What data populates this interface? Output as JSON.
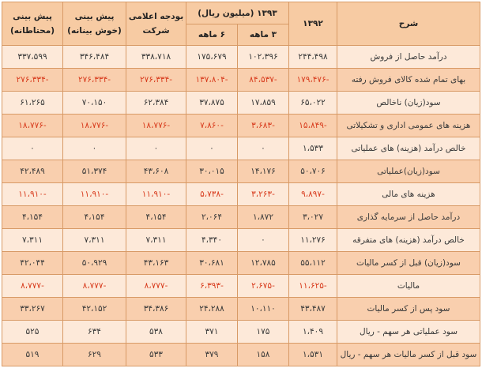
{
  "header": {
    "desc": "شرح",
    "y1392": "۱۳۹۲",
    "y1393": "۱۳۹۳ (میلیون ریال)",
    "m3": "۳ ماهه",
    "m6": "۶ ماهه",
    "budget": "بودجه اعلامی شرکت",
    "forecast_opt": "پیش بینی (خوش بینانه)",
    "forecast_cons": "پیش بینی (محتاطانه)"
  },
  "rows": [
    {
      "desc": "درآمد حاصل از فروش",
      "v1392": "۲۴۴،۴۹۸",
      "m3": "۱۰۲،۳۹۶",
      "m6": "۱۷۵،۶۷۹",
      "budget": "۳۳۸،۷۱۸",
      "opt": "۳۴۶،۴۸۴",
      "cons": "۳۳۷،۵۹۹",
      "neg": false
    },
    {
      "desc": "بهای تمام شده کالای فروش رفته",
      "v1392": "-۱۷۹،۴۷۶",
      "m3": "-۸۴،۵۳۷",
      "m6": "-۱۳۷،۸۰۴",
      "budget": "-۲۷۶،۳۳۴",
      "opt": "-۲۷۶،۳۳۴",
      "cons": "-۲۷۶،۳۳۴",
      "neg": true
    },
    {
      "desc": "سود(زیان) ناخالص",
      "v1392": "۶۵،۰۲۲",
      "m3": "۱۷،۸۵۹",
      "m6": "۳۷،۸۷۵",
      "budget": "۶۲،۳۸۴",
      "opt": "۷۰،۱۵۰",
      "cons": "۶۱،۲۶۵",
      "neg": false
    },
    {
      "desc": "هزینه های عمومی اداری و تشکیلاتی",
      "v1392": "-۱۵،۸۴۹",
      "m3": "-۳،۶۸۳",
      "m6": "-۷،۸۶۰",
      "budget": "-۱۸،۷۷۶",
      "opt": "-۱۸،۷۷۶",
      "cons": "-۱۸،۷۷۶",
      "neg": true
    },
    {
      "desc": "خالص درآمد (هزینه) های عملیاتی",
      "v1392": "۱،۵۳۳",
      "m3": "۰",
      "m6": "۰",
      "budget": "۰",
      "opt": "۰",
      "cons": "۰",
      "neg": false
    },
    {
      "desc": "سود(زیان)عملیاتی",
      "v1392": "۵۰،۷۰۶",
      "m3": "۱۴،۱۷۶",
      "m6": "۳۰،۰۱۵",
      "budget": "۴۳،۶۰۸",
      "opt": "۵۱،۳۷۴",
      "cons": "۴۲،۴۸۹",
      "neg": false
    },
    {
      "desc": "هزینه های مالی",
      "v1392": "-۹،۸۹۷",
      "m3": "-۳،۲۶۳",
      "m6": "-۵،۷۳۸",
      "budget": "-۱۱،۹۱۰",
      "opt": "-۱۱،۹۱۰",
      "cons": "-۱۱،۹۱۰",
      "neg": true
    },
    {
      "desc": "درآمد حاصل از سرمایه گذاری",
      "v1392": "۳،۰۲۷",
      "m3": "۱،۸۷۲",
      "m6": "۲،۰۶۴",
      "budget": "۴،۱۵۴",
      "opt": "۴،۱۵۴",
      "cons": "۴،۱۵۴",
      "neg": false
    },
    {
      "desc": "خالص درآمد (هزینه) های متفرقه",
      "v1392": "۱۱،۲۷۶",
      "m3": "۰",
      "m6": "۴،۳۴۰",
      "budget": "۷،۳۱۱",
      "opt": "۷،۳۱۱",
      "cons": "۷،۳۱۱",
      "neg": false
    },
    {
      "desc": "سود(زیان) قبل از کسر مالیات",
      "v1392": "۵۵،۱۱۲",
      "m3": "۱۲،۷۸۵",
      "m6": "۳۰،۶۸۱",
      "budget": "۴۳،۱۶۳",
      "opt": "۵۰،۹۲۹",
      "cons": "۴۲،۰۴۴",
      "neg": false
    },
    {
      "desc": "مالیات",
      "v1392": "-۱۱،۶۲۵",
      "m3": "-۲،۶۷۵",
      "m6": "-۶،۳۹۳",
      "budget": "-۸،۷۷۷",
      "opt": "-۸،۷۷۷",
      "cons": "-۸،۷۷۷",
      "neg": true
    },
    {
      "desc": "سود پس از کسر مالیات",
      "v1392": "۴۳،۴۸۷",
      "m3": "۱۰،۱۱۰",
      "m6": "۲۴،۲۸۸",
      "budget": "۳۴،۳۸۶",
      "opt": "۴۲،۱۵۲",
      "cons": "۳۳،۲۶۷",
      "neg": false
    },
    {
      "desc": "سود عملیاتی هر سهم - ریال",
      "v1392": "۱،۴۰۹",
      "m3": "۱۷۵",
      "m6": "۳۷۱",
      "budget": "۵۳۸",
      "opt": "۶۳۴",
      "cons": "۵۲۵",
      "neg": false
    },
    {
      "desc": "سود قبل از کسر مالیات هر سهم - ریال",
      "v1392": "۱،۵۳۱",
      "m3": "۱۵۸",
      "m6": "۳۷۹",
      "budget": "۵۳۳",
      "opt": "۶۲۹",
      "cons": "۵۱۹",
      "neg": false
    }
  ]
}
